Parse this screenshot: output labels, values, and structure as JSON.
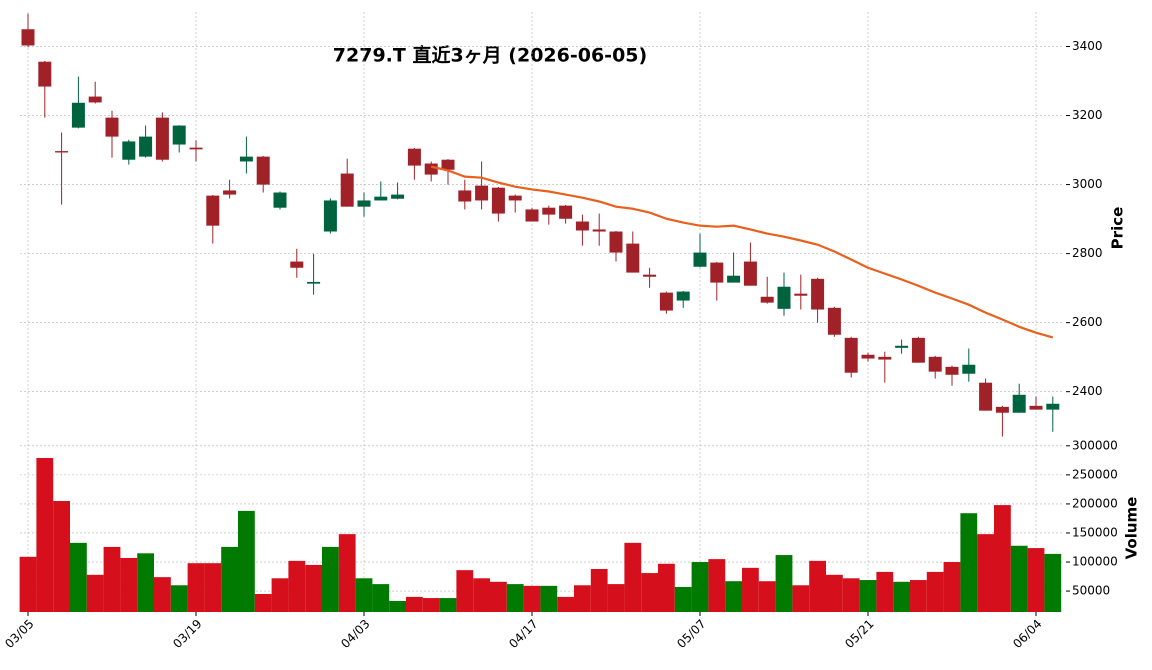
{
  "chart_data": {
    "type": "candlestick",
    "title": "7279.T  直近3ヶ月  (2026-06-05)",
    "categories": [
      "03/05",
      null,
      null,
      null,
      null,
      null,
      null,
      null,
      null,
      null,
      "03/19",
      null,
      null,
      null,
      null,
      null,
      null,
      null,
      null,
      null,
      "04/03",
      null,
      null,
      null,
      null,
      null,
      null,
      null,
      null,
      null,
      "04/17",
      null,
      null,
      null,
      null,
      null,
      null,
      null,
      null,
      null,
      "05/07",
      null,
      null,
      null,
      null,
      null,
      null,
      null,
      null,
      null,
      "05/21",
      null,
      null,
      null,
      null,
      null,
      null,
      null,
      null,
      null,
      "06/04",
      null
    ],
    "open": [
      3450,
      3356,
      3097,
      3165,
      3255,
      3194,
      3072,
      3081,
      3194,
      3116,
      3107,
      2968,
      2983,
      3067,
      3081,
      2933,
      2777,
      2713,
      2864,
      3032,
      2936,
      2954,
      2959,
      3104,
      3061,
      3072,
      2983,
      2997,
      2991,
      2968,
      2928,
      2933,
      2939,
      2893,
      2870,
      2864,
      2829,
      2739,
      2687,
      2664,
      2762,
      2774,
      2716,
      2777,
      2675,
      2640,
      2684,
      2727,
      2643,
      2556,
      2507,
      2501,
      2527,
      2556,
      2501,
      2472,
      2452,
      2426,
      2356,
      2339,
      2359,
      2348
    ],
    "high": [
      3495,
      3358,
      3151,
      3313,
      3298,
      3214,
      3130,
      3171,
      3209,
      3172,
      3128,
      2970,
      3014,
      3139,
      3083,
      2980,
      2814,
      2800,
      2960,
      3075,
      2977,
      3009,
      3006,
      3106,
      3067,
      3074,
      3014,
      3067,
      2993,
      2971,
      2933,
      2939,
      2941,
      2913,
      2916,
      2866,
      2864,
      2759,
      2690,
      2692,
      2858,
      2776,
      2803,
      2832,
      2733,
      2745,
      2739,
      2730,
      2646,
      2559,
      2513,
      2516,
      2551,
      2559,
      2504,
      2475,
      2525,
      2438,
      2359,
      2423,
      2386,
      2386
    ],
    "low": [
      3398,
      3194,
      2942,
      3163,
      3235,
      3078,
      3058,
      3078,
      3067,
      3093,
      3067,
      2829,
      2960,
      3032,
      2977,
      2928,
      2730,
      2681,
      2858,
      2936,
      2907,
      2954,
      2957,
      3014,
      3009,
      3000,
      2928,
      2928,
      2893,
      2919,
      2893,
      2884,
      2887,
      2823,
      2823,
      2777,
      2745,
      2701,
      2626,
      2643,
      2760,
      2664,
      2716,
      2707,
      2655,
      2620,
      2638,
      2600,
      2559,
      2441,
      2487,
      2426,
      2510,
      2484,
      2438,
      2417,
      2429,
      2345,
      2270,
      2339,
      2348,
      2284
    ],
    "close": [
      3403,
      3284,
      3093,
      3237,
      3238,
      3139,
      3125,
      3139,
      3072,
      3171,
      3102,
      2881,
      2971,
      3081,
      3000,
      2977,
      2759,
      2718,
      2954,
      2936,
      2954,
      2965,
      2971,
      3055,
      3029,
      3043,
      2951,
      2954,
      2916,
      2954,
      2893,
      2913,
      2901,
      2867,
      2864,
      2803,
      2745,
      2733,
      2635,
      2690,
      2803,
      2716,
      2736,
      2707,
      2658,
      2704,
      2678,
      2638,
      2565,
      2455,
      2496,
      2493,
      2533,
      2484,
      2458,
      2449,
      2478,
      2345,
      2339,
      2391,
      2348,
      2365
    ],
    "up_color": "#006340",
    "down_color": "#a02128",
    "ma": {
      "color": "#e8601c",
      "values": [
        null,
        null,
        null,
        null,
        null,
        null,
        null,
        null,
        null,
        null,
        null,
        null,
        null,
        null,
        null,
        null,
        null,
        null,
        null,
        null,
        null,
        null,
        null,
        null,
        3052,
        3041,
        3023,
        3020,
        3006,
        2994,
        2986,
        2980,
        2971,
        2962,
        2951,
        2936,
        2930,
        2919,
        2901,
        2890,
        2881,
        2878,
        2881,
        2870,
        2858,
        2849,
        2838,
        2826,
        2806,
        2783,
        2759,
        2742,
        2725,
        2707,
        2687,
        2670,
        2652,
        2629,
        2609,
        2588,
        2571,
        2557
      ]
    },
    "ylabel": "Price",
    "ylim": [
      2260,
      3500
    ],
    "yticks": [
      2400,
      2600,
      2800,
      3000,
      3200,
      3400
    ],
    "grid": true,
    "volume": {
      "ylabel": "Volume",
      "values": [
        109000,
        279000,
        205000,
        133000,
        78000,
        126000,
        107000,
        115000,
        74000,
        60000,
        98000,
        98000,
        126000,
        188000,
        45000,
        72000,
        102000,
        95000,
        126000,
        148000,
        72000,
        62000,
        33000,
        40000,
        38000,
        38000,
        86000,
        72000,
        66000,
        62000,
        59000,
        59000,
        40000,
        60000,
        88000,
        62000,
        133000,
        81000,
        97000,
        57000,
        100000,
        105000,
        67000,
        90000,
        67000,
        112000,
        60000,
        102000,
        78000,
        72000,
        69000,
        83000,
        66000,
        69000,
        83000,
        100000,
        184000,
        148000,
        198000,
        128000,
        124000,
        114000
      ],
      "colors": [
        "#d60f1c",
        "#d60f1c",
        "#d60f1c",
        "#007a00",
        "#d60f1c",
        "#d60f1c",
        "#d60f1c",
        "#007a00",
        "#d60f1c",
        "#007a00",
        "#d60f1c",
        "#d60f1c",
        "#007a00",
        "#007a00",
        "#d60f1c",
        "#d60f1c",
        "#d60f1c",
        "#d60f1c",
        "#007a00",
        "#d60f1c",
        "#007a00",
        "#007a00",
        "#007a00",
        "#d60f1c",
        "#d60f1c",
        "#007a00",
        "#d60f1c",
        "#d60f1c",
        "#d60f1c",
        "#007a00",
        "#d60f1c",
        "#007a00",
        "#d60f1c",
        "#d60f1c",
        "#d60f1c",
        "#d60f1c",
        "#d60f1c",
        "#d60f1c",
        "#d60f1c",
        "#007a00",
        "#007a00",
        "#d60f1c",
        "#007a00",
        "#d60f1c",
        "#d60f1c",
        "#007a00",
        "#d60f1c",
        "#d60f1c",
        "#d60f1c",
        "#d60f1c",
        "#007a00",
        "#d60f1c",
        "#007a00",
        "#d60f1c",
        "#d60f1c",
        "#d60f1c",
        "#007a00",
        "#d60f1c",
        "#d60f1c",
        "#007a00",
        "#d60f1c",
        "#007a00"
      ],
      "ylim": [
        14000,
        310000
      ],
      "yticks": [
        50000,
        100000,
        150000,
        200000,
        250000,
        300000
      ]
    }
  }
}
